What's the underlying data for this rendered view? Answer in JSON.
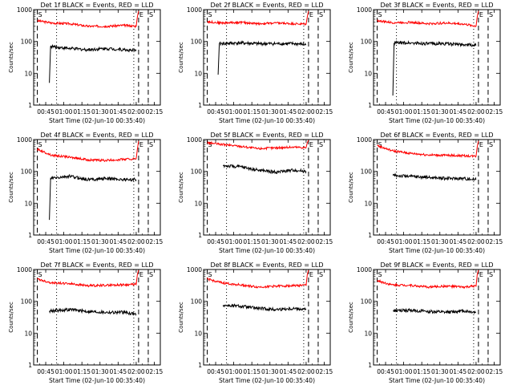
{
  "chart_data": [
    {
      "type": "line",
      "title": "Det 1f BLACK = Events, RED = LLD",
      "xlabel": "Start Time (02-Jun-10 00:35:40)",
      "ylabel": "Counts/sec",
      "yscale": "log",
      "ylim": [
        1,
        1000
      ],
      "xlim": [
        "00:35",
        "02:20"
      ],
      "x_ticks": [
        "00:45",
        "01:00",
        "01:15",
        "01:30",
        "01:45",
        "02:00",
        "02:15"
      ],
      "y_ticks": [
        "1",
        "10",
        "100",
        "1000"
      ],
      "markers": [
        {
          "label": "S",
          "time": "00:38",
          "style": "dashed"
        },
        {
          "label": "E",
          "time": "02:02",
          "style": "dashed"
        },
        {
          "label": "S",
          "time": "02:10",
          "style": "dashed"
        },
        {
          "label": "",
          "time": "00:54",
          "style": "dotted"
        },
        {
          "label": "",
          "time": "01:58",
          "style": "dotted"
        }
      ],
      "series": [
        {
          "color": "#ff0000",
          "time": [
            "00:38",
            "00:50",
            "01:05",
            "01:20",
            "01:35",
            "01:50",
            "02:00",
            "02:01",
            "02:02"
          ],
          "values": [
            450,
            380,
            360,
            300,
            300,
            320,
            300,
            600,
            900
          ]
        },
        {
          "color": "#000000",
          "time": [
            "00:48",
            "00:49",
            "01:05",
            "01:20",
            "01:35",
            "01:50",
            "02:00"
          ],
          "values": [
            5,
            70,
            60,
            55,
            60,
            55,
            50
          ]
        }
      ]
    },
    {
      "type": "line",
      "title": "Det 2f BLACK = Events, RED = LLD",
      "xlabel": "Start Time (02-Jun-10 00:35:40)",
      "ylabel": "Counts/sec",
      "yscale": "log",
      "ylim": [
        1,
        1000
      ],
      "xlim": [
        "00:35",
        "02:20"
      ],
      "x_ticks": [
        "00:45",
        "01:00",
        "01:15",
        "01:30",
        "01:45",
        "02:00",
        "02:15"
      ],
      "y_ticks": [
        "1",
        "10",
        "100",
        "1000"
      ],
      "markers": [
        {
          "label": "S",
          "time": "00:38",
          "style": "dashed"
        },
        {
          "label": "E",
          "time": "02:02",
          "style": "dashed"
        },
        {
          "label": "S",
          "time": "02:10",
          "style": "dashed"
        },
        {
          "label": "",
          "time": "00:54",
          "style": "dotted"
        },
        {
          "label": "",
          "time": "01:58",
          "style": "dotted"
        }
      ],
      "series": [
        {
          "color": "#ff0000",
          "time": [
            "00:38",
            "00:50",
            "01:05",
            "01:20",
            "01:35",
            "01:50",
            "02:00",
            "02:01",
            "02:02"
          ],
          "values": [
            420,
            380,
            400,
            360,
            380,
            360,
            350,
            600,
            900
          ]
        },
        {
          "color": "#000000",
          "time": [
            "00:47",
            "00:48",
            "01:05",
            "01:20",
            "01:35",
            "01:50",
            "02:00"
          ],
          "values": [
            9,
            85,
            90,
            85,
            85,
            85,
            80
          ]
        }
      ]
    },
    {
      "type": "line",
      "title": "Det 3f BLACK = Events, RED = LLD",
      "xlabel": "Start Time (02-Jun-10 00:35:40)",
      "ylabel": "Counts/sec",
      "yscale": "log",
      "ylim": [
        1,
        1000
      ],
      "xlim": [
        "00:35",
        "02:20"
      ],
      "x_ticks": [
        "00:45",
        "01:00",
        "01:15",
        "01:30",
        "01:45",
        "02:00",
        "02:15"
      ],
      "y_ticks": [
        "1",
        "10",
        "100",
        "1000"
      ],
      "markers": [
        {
          "label": "S",
          "time": "00:38",
          "style": "dashed"
        },
        {
          "label": "E",
          "time": "02:02",
          "style": "dashed"
        },
        {
          "label": "S",
          "time": "02:10",
          "style": "dashed"
        },
        {
          "label": "",
          "time": "00:54",
          "style": "dotted"
        },
        {
          "label": "",
          "time": "01:58",
          "style": "dotted"
        }
      ],
      "series": [
        {
          "color": "#ff0000",
          "time": [
            "00:38",
            "00:50",
            "01:05",
            "01:20",
            "01:35",
            "01:50",
            "02:00",
            "02:01",
            "02:02"
          ],
          "values": [
            450,
            390,
            400,
            360,
            380,
            350,
            300,
            600,
            900
          ]
        },
        {
          "color": "#000000",
          "time": [
            "00:51",
            "00:52",
            "01:05",
            "01:20",
            "01:35",
            "01:50",
            "02:00"
          ],
          "values": [
            2,
            90,
            90,
            85,
            85,
            80,
            75
          ]
        }
      ]
    },
    {
      "type": "line",
      "title": "Det 4f BLACK = Events, RED = LLD",
      "xlabel": "Start Time (02-Jun-10 00:35:40)",
      "ylabel": "Counts/sec",
      "yscale": "log",
      "ylim": [
        1,
        1000
      ],
      "xlim": [
        "00:35",
        "02:20"
      ],
      "x_ticks": [
        "00:45",
        "01:00",
        "01:15",
        "01:30",
        "01:45",
        "02:00",
        "02:15"
      ],
      "y_ticks": [
        "1",
        "10",
        "100",
        "1000"
      ],
      "markers": [
        {
          "label": "S",
          "time": "00:38",
          "style": "dashed"
        },
        {
          "label": "E",
          "time": "02:02",
          "style": "dashed"
        },
        {
          "label": "S",
          "time": "02:10",
          "style": "dashed"
        },
        {
          "label": "",
          "time": "00:54",
          "style": "dotted"
        },
        {
          "label": "",
          "time": "01:58",
          "style": "dotted"
        }
      ],
      "series": [
        {
          "color": "#ff0000",
          "time": [
            "00:38",
            "00:50",
            "01:05",
            "01:20",
            "01:35",
            "01:50",
            "02:00",
            "02:01",
            "02:02"
          ],
          "values": [
            500,
            320,
            280,
            230,
            220,
            240,
            250,
            500,
            900
          ]
        },
        {
          "color": "#000000",
          "time": [
            "00:48",
            "00:49",
            "01:05",
            "01:20",
            "01:35",
            "01:50",
            "02:00"
          ],
          "values": [
            3,
            60,
            70,
            55,
            60,
            55,
            55
          ]
        }
      ]
    },
    {
      "type": "line",
      "title": "Det 5f BLACK = Events, RED = LLD",
      "xlabel": "Start Time (02-Jun-10 00:35:40)",
      "ylabel": "Counts/sec",
      "yscale": "log",
      "ylim": [
        1,
        1000
      ],
      "xlim": [
        "00:35",
        "02:20"
      ],
      "x_ticks": [
        "00:45",
        "01:00",
        "01:15",
        "01:30",
        "01:45",
        "02:00",
        "02:15"
      ],
      "y_ticks": [
        "1",
        "10",
        "100",
        "1000"
      ],
      "markers": [
        {
          "label": "S",
          "time": "00:38",
          "style": "dashed"
        },
        {
          "label": "E",
          "time": "02:02",
          "style": "dashed"
        },
        {
          "label": "S",
          "time": "02:10",
          "style": "dashed"
        },
        {
          "label": "",
          "time": "00:54",
          "style": "dotted"
        },
        {
          "label": "",
          "time": "01:58",
          "style": "dotted"
        }
      ],
      "series": [
        {
          "color": "#ff0000",
          "time": [
            "00:38",
            "00:50",
            "01:05",
            "01:20",
            "01:35",
            "01:50",
            "02:00",
            "02:01",
            "02:02"
          ],
          "values": [
            800,
            700,
            620,
            520,
            550,
            580,
            560,
            800,
            950
          ]
        },
        {
          "color": "#000000",
          "time": [
            "00:51",
            "01:05",
            "01:20",
            "01:35",
            "01:50",
            "02:00"
          ],
          "values": [
            150,
            140,
            110,
            95,
            110,
            100
          ]
        }
      ]
    },
    {
      "type": "line",
      "title": "Det 6f BLACK = Events, RED = LLD",
      "xlabel": "Start Time (02-Jun-10 00:35:40)",
      "ylabel": "Counts/sec",
      "yscale": "log",
      "ylim": [
        1,
        1000
      ],
      "xlim": [
        "00:35",
        "02:20"
      ],
      "x_ticks": [
        "00:45",
        "01:00",
        "01:15",
        "01:30",
        "01:45",
        "02:00",
        "02:15"
      ],
      "y_ticks": [
        "1",
        "10",
        "100",
        "1000"
      ],
      "markers": [
        {
          "label": "S",
          "time": "00:38",
          "style": "dashed"
        },
        {
          "label": "E",
          "time": "02:02",
          "style": "dashed"
        },
        {
          "label": "S",
          "time": "02:10",
          "style": "dashed"
        },
        {
          "label": "",
          "time": "00:54",
          "style": "dotted"
        },
        {
          "label": "",
          "time": "01:58",
          "style": "dotted"
        }
      ],
      "series": [
        {
          "color": "#ff0000",
          "time": [
            "00:38",
            "00:50",
            "01:05",
            "01:20",
            "01:35",
            "01:50",
            "02:00",
            "02:01",
            "02:02"
          ],
          "values": [
            650,
            450,
            370,
            330,
            320,
            310,
            300,
            600,
            900
          ]
        },
        {
          "color": "#000000",
          "time": [
            "00:51",
            "01:05",
            "01:20",
            "01:35",
            "01:50",
            "02:00"
          ],
          "values": [
            75,
            70,
            65,
            60,
            60,
            55
          ]
        }
      ]
    },
    {
      "type": "line",
      "title": "Det 7f BLACK = Events, RED = LLD",
      "xlabel": "Start Time (02-Jun-10 00:35:40)",
      "ylabel": "Counts/sec",
      "yscale": "log",
      "ylim": [
        1,
        1000
      ],
      "xlim": [
        "00:35",
        "02:20"
      ],
      "x_ticks": [
        "00:45",
        "01:00",
        "01:15",
        "01:30",
        "01:45",
        "02:00",
        "02:15"
      ],
      "y_ticks": [
        "1",
        "10",
        "100",
        "1000"
      ],
      "markers": [
        {
          "label": "S",
          "time": "00:38",
          "style": "dashed"
        },
        {
          "label": "E",
          "time": "02:02",
          "style": "dashed"
        },
        {
          "label": "S",
          "time": "02:10",
          "style": "dashed"
        },
        {
          "label": "",
          "time": "00:54",
          "style": "dotted"
        },
        {
          "label": "",
          "time": "01:58",
          "style": "dotted"
        }
      ],
      "series": [
        {
          "color": "#ff0000",
          "time": [
            "00:38",
            "00:50",
            "01:05",
            "01:20",
            "01:35",
            "01:50",
            "02:00",
            "02:01",
            "02:02"
          ],
          "values": [
            500,
            380,
            360,
            310,
            320,
            330,
            340,
            700,
            950
          ]
        },
        {
          "color": "#000000",
          "time": [
            "00:48",
            "01:05",
            "01:20",
            "01:35",
            "01:50",
            "02:00"
          ],
          "values": [
            50,
            55,
            48,
            45,
            45,
            40
          ]
        }
      ]
    },
    {
      "type": "line",
      "title": "Det 8f BLACK = Events, RED = LLD",
      "xlabel": "Start Time (02-Jun-10 00:35:40)",
      "ylabel": "Counts/sec",
      "yscale": "log",
      "ylim": [
        1,
        1000
      ],
      "xlim": [
        "00:35",
        "02:20"
      ],
      "x_ticks": [
        "00:45",
        "01:00",
        "01:15",
        "01:30",
        "01:45",
        "02:00",
        "02:15"
      ],
      "y_ticks": [
        "1",
        "10",
        "100",
        "1000"
      ],
      "markers": [
        {
          "label": "S",
          "time": "00:38",
          "style": "dashed"
        },
        {
          "label": "E",
          "time": "02:02",
          "style": "dashed"
        },
        {
          "label": "S",
          "time": "02:10",
          "style": "dashed"
        },
        {
          "label": "",
          "time": "00:54",
          "style": "dotted"
        },
        {
          "label": "",
          "time": "01:58",
          "style": "dotted"
        }
      ],
      "series": [
        {
          "color": "#ff0000",
          "time": [
            "00:38",
            "00:50",
            "01:05",
            "01:20",
            "01:35",
            "01:50",
            "02:00",
            "02:01",
            "02:02"
          ],
          "values": [
            500,
            380,
            330,
            280,
            300,
            310,
            320,
            700,
            950
          ]
        },
        {
          "color": "#000000",
          "time": [
            "00:51",
            "01:05",
            "01:20",
            "01:35",
            "01:50",
            "02:00"
          ],
          "values": [
            75,
            70,
            60,
            55,
            60,
            55
          ]
        }
      ]
    },
    {
      "type": "line",
      "title": "Det 9f BLACK = Events, RED = LLD",
      "xlabel": "Start Time (02-Jun-10 00:35:40)",
      "ylabel": "Counts/sec",
      "yscale": "log",
      "ylim": [
        1,
        1000
      ],
      "xlim": [
        "00:35",
        "02:20"
      ],
      "x_ticks": [
        "00:45",
        "01:00",
        "01:15",
        "01:30",
        "01:45",
        "02:00",
        "02:15"
      ],
      "y_ticks": [
        "1",
        "10",
        "100",
        "1000"
      ],
      "markers": [
        {
          "label": "S",
          "time": "00:38",
          "style": "dashed"
        },
        {
          "label": "E",
          "time": "02:02",
          "style": "dashed"
        },
        {
          "label": "S",
          "time": "02:10",
          "style": "dashed"
        },
        {
          "label": "",
          "time": "00:54",
          "style": "dotted"
        },
        {
          "label": "",
          "time": "01:58",
          "style": "dotted"
        }
      ],
      "series": [
        {
          "color": "#ff0000",
          "time": [
            "00:38",
            "00:50",
            "01:05",
            "01:20",
            "01:35",
            "01:50",
            "02:00",
            "02:01",
            "02:02"
          ],
          "values": [
            450,
            330,
            320,
            280,
            300,
            280,
            300,
            700,
            950
          ]
        },
        {
          "color": "#000000",
          "time": [
            "00:51",
            "01:05",
            "01:20",
            "01:35",
            "01:50",
            "02:00"
          ],
          "values": [
            50,
            52,
            48,
            45,
            50,
            45
          ]
        }
      ]
    }
  ]
}
